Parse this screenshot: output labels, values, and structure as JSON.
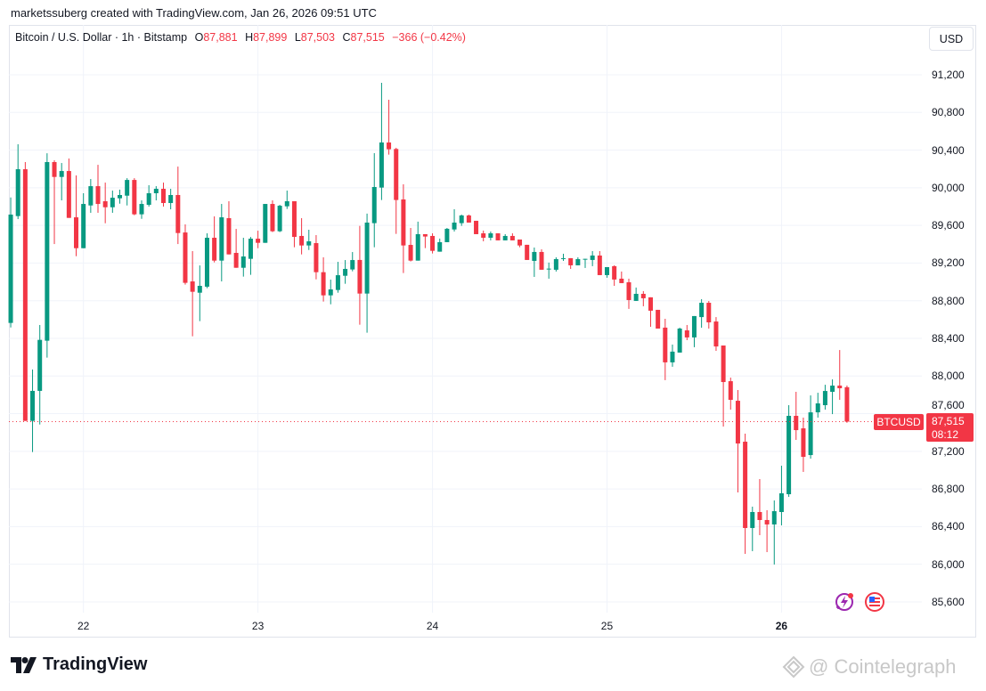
{
  "credit": "marketssuberg created with TradingView.com, Jan 26, 2026 09:51 UTC",
  "legend": {
    "symbol": "Bitcoin / U.S. Dollar · 1h · Bitstamp",
    "o_label": "O",
    "o": "87,881",
    "h_label": "H",
    "h": "87,899",
    "l_label": "L",
    "l": "87,503",
    "c_label": "C",
    "c": "87,515",
    "change": "−366 (−0.42%)"
  },
  "currency_button": "USD",
  "last_price": {
    "symbol": "BTCUSD",
    "price": "87,515",
    "countdown": "08:12",
    "value": 87515
  },
  "colors": {
    "up": "#089981",
    "down": "#f23645",
    "grid": "#f0f3fa",
    "last": "#f23645"
  },
  "icons": [
    "lightning-icon",
    "us-flag-icon"
  ],
  "footer": {
    "brand": "TradingView",
    "watermark": "@ Cointelegraph"
  },
  "chart_data": {
    "type": "candlestick",
    "title": "Bitcoin / U.S. Dollar · 1h · Bitstamp",
    "interval": "1h",
    "first_candle": "Jan 21 14:00",
    "ylim": [
      85221,
      91730
    ],
    "xlim": [
      -0.25,
      125.3
    ],
    "grid": true,
    "y_ticks": [
      {
        "label": "91,200",
        "value": 91200
      },
      {
        "label": "90,800",
        "value": 90800
      },
      {
        "label": "90,400",
        "value": 90400
      },
      {
        "label": "90,000",
        "value": 90000
      },
      {
        "label": "89,600",
        "value": 89600
      },
      {
        "label": "89,200",
        "value": 89200
      },
      {
        "label": "88,800",
        "value": 88800
      },
      {
        "label": "88,400",
        "value": 88400
      },
      {
        "label": "88,000",
        "value": 88000
      },
      {
        "label": "87,600",
        "value": 87600
      },
      {
        "label": "87,200",
        "value": 87200
      },
      {
        "label": "86,800",
        "value": 86800
      },
      {
        "label": "86,400",
        "value": 86400
      },
      {
        "label": "86,000",
        "value": 86000
      },
      {
        "label": "85,600",
        "value": 85600
      }
    ],
    "x_ticks": [
      {
        "label": "22",
        "index": 10
      },
      {
        "label": "23",
        "index": 34
      },
      {
        "label": "24",
        "index": 58
      },
      {
        "label": "25",
        "index": 82
      },
      {
        "label": "26",
        "index": 106,
        "bold": true
      }
    ],
    "ohlc_fields": [
      "open",
      "high",
      "low",
      "close"
    ],
    "ohlc": [
      [
        88564,
        89897,
        88516,
        89715
      ],
      [
        89699,
        90462,
        89667,
        90197
      ],
      [
        90197,
        90273,
        87523,
        87523
      ],
      [
        87523,
        88069,
        87192,
        87842
      ],
      [
        87842,
        88542,
        87485,
        88384
      ],
      [
        88375,
        90367,
        88195,
        90273
      ],
      [
        90273,
        90292,
        89402,
        90115
      ],
      [
        90115,
        90263,
        89866,
        90178
      ],
      [
        90178,
        90311,
        89680,
        89680
      ],
      [
        89686,
        90131,
        89273,
        89358
      ],
      [
        89358,
        89942,
        89358,
        89828
      ],
      [
        89812,
        90093,
        89734,
        90017
      ],
      [
        90017,
        90244,
        89734,
        89828
      ],
      [
        89857,
        90055,
        89623,
        89793
      ],
      [
        89793,
        89970,
        89734,
        89894
      ],
      [
        89888,
        89980,
        89831,
        89923
      ],
      [
        89916,
        90102,
        89812,
        90083
      ],
      [
        90083,
        90102,
        89708,
        89718
      ],
      [
        89718,
        89866,
        89670,
        89828
      ],
      [
        89819,
        90027,
        89800,
        89942
      ],
      [
        89942,
        90017,
        89866,
        89989
      ],
      [
        89989,
        90055,
        89800,
        89838
      ],
      [
        89838,
        89989,
        89771,
        89923
      ],
      [
        89923,
        90225,
        89402,
        89519
      ],
      [
        89525,
        89611,
        88971,
        88990
      ],
      [
        89005,
        89327,
        88422,
        88895
      ],
      [
        88885,
        89175,
        88583,
        88958
      ],
      [
        88949,
        89516,
        88933,
        89469
      ],
      [
        89469,
        89696,
        89207,
        89226
      ],
      [
        89226,
        89828,
        89005,
        89686
      ],
      [
        89677,
        89857,
        89292,
        89292
      ],
      [
        89308,
        89563,
        89150,
        89150
      ],
      [
        89150,
        89469,
        89056,
        89270
      ],
      [
        89245,
        89477,
        89075,
        89459
      ],
      [
        89459,
        89544,
        89358,
        89415
      ],
      [
        89415,
        89828,
        89415,
        89828
      ],
      [
        89828,
        89866,
        89529,
        89538
      ],
      [
        89538,
        89819,
        89529,
        89809
      ],
      [
        89803,
        89970,
        89775,
        89857
      ],
      [
        89857,
        89857,
        89368,
        89478
      ],
      [
        89488,
        89677,
        89292,
        89387
      ],
      [
        89387,
        89554,
        89339,
        89431
      ],
      [
        89412,
        89497,
        89027,
        89103
      ],
      [
        89103,
        89261,
        88791,
        88857
      ],
      [
        88857,
        89024,
        88762,
        88920
      ],
      [
        88914,
        89213,
        88885,
        89071
      ],
      [
        89065,
        89232,
        88980,
        89138
      ],
      [
        89132,
        89317,
        89112,
        89232
      ],
      [
        89233,
        89595,
        88545,
        88876
      ],
      [
        88876,
        89725,
        88460,
        89630
      ],
      [
        89624,
        90368,
        89368,
        90008
      ],
      [
        90002,
        91115,
        89870,
        90481
      ],
      [
        90481,
        90935,
        90352,
        90409
      ],
      [
        90412,
        90425,
        89510,
        89870
      ],
      [
        89876,
        90037,
        89094,
        89387
      ],
      [
        89393,
        89573,
        89217,
        89226
      ],
      [
        89226,
        89640,
        89226,
        89507
      ],
      [
        89507,
        89507,
        89359,
        89482
      ],
      [
        89488,
        89516,
        89302,
        89330
      ],
      [
        89321,
        89460,
        89321,
        89422
      ],
      [
        89422,
        89573,
        89422,
        89564
      ],
      [
        89557,
        89772,
        89535,
        89630
      ],
      [
        89624,
        89715,
        89595,
        89706
      ],
      [
        89706,
        89715,
        89630,
        89630
      ],
      [
        89649,
        89649,
        89507,
        89507
      ],
      [
        89516,
        89545,
        89431,
        89469
      ],
      [
        89469,
        89535,
        89441,
        89516
      ],
      [
        89516,
        89516,
        89441,
        89441
      ],
      [
        89441,
        89507,
        89441,
        89488
      ],
      [
        89488,
        89516,
        89441,
        89441
      ],
      [
        89450,
        89450,
        89368,
        89387
      ],
      [
        89394,
        89394,
        89233,
        89233
      ],
      [
        89223,
        89365,
        89053,
        89318
      ],
      [
        89318,
        89346,
        89129,
        89129
      ],
      [
        89135,
        89205,
        89034,
        89141
      ],
      [
        89129,
        89261,
        89110,
        89242
      ],
      [
        89249,
        89299,
        89223,
        89252
      ],
      [
        89252,
        89252,
        89138,
        89176
      ],
      [
        89176,
        89261,
        89176,
        89242
      ],
      [
        89242,
        89245,
        89148,
        89245
      ],
      [
        89233,
        89327,
        89167,
        89280
      ],
      [
        89280,
        89327,
        89072,
        89072
      ],
      [
        89072,
        89157,
        89044,
        89157
      ],
      [
        89167,
        89176,
        88958,
        89025
      ],
      [
        89034,
        89110,
        88987,
        88987
      ],
      [
        88996,
        89034,
        88713,
        88807
      ],
      [
        88798,
        88940,
        88798,
        88873
      ],
      [
        88873,
        88902,
        88741,
        88826
      ],
      [
        88836,
        88836,
        88523,
        88694
      ],
      [
        88703,
        88703,
        88504,
        88504
      ],
      [
        88514,
        88608,
        87956,
        88145
      ],
      [
        88145,
        88334,
        88098,
        88259
      ],
      [
        88249,
        88514,
        88249,
        88504
      ],
      [
        88485,
        88542,
        88381,
        88410
      ],
      [
        88410,
        88637,
        88306,
        88637
      ],
      [
        88626,
        88816,
        88513,
        88778
      ],
      [
        88778,
        88797,
        88504,
        88570
      ],
      [
        88579,
        88626,
        88267,
        88314
      ],
      [
        88324,
        88324,
        87463,
        87936
      ],
      [
        87945,
        87983,
        87643,
        87747
      ],
      [
        87737,
        87851,
        86763,
        87283
      ],
      [
        87302,
        87387,
        86110,
        86385
      ],
      [
        86385,
        86612,
        86139,
        86555
      ],
      [
        86555,
        86905,
        86309,
        86470
      ],
      [
        86470,
        86574,
        86129,
        86423
      ],
      [
        86423,
        86678,
        85997,
        86564
      ],
      [
        86555,
        87047,
        86413,
        86754
      ],
      [
        86744,
        87690,
        86716,
        87577
      ],
      [
        87577,
        87832,
        87321,
        87425
      ],
      [
        87444,
        87558,
        86981,
        87141
      ],
      [
        87160,
        87794,
        87122,
        87614
      ],
      [
        87614,
        87822,
        87558,
        87709
      ],
      [
        87690,
        87907,
        87643,
        87841
      ],
      [
        87832,
        87964,
        87595,
        87898
      ],
      [
        87898,
        88276,
        87747,
        87870
      ],
      [
        87881,
        87899,
        87503,
        87515
      ]
    ]
  }
}
